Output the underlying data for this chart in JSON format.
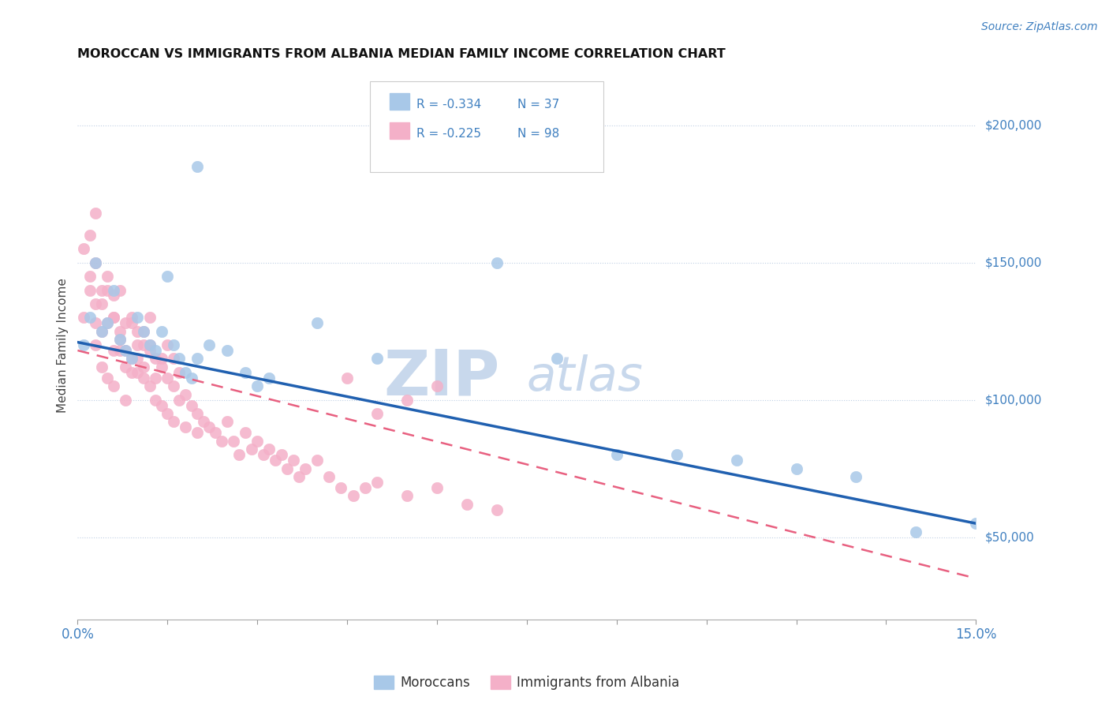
{
  "title": "MOROCCAN VS IMMIGRANTS FROM ALBANIA MEDIAN FAMILY INCOME CORRELATION CHART",
  "source": "Source: ZipAtlas.com",
  "ylabel": "Median Family Income",
  "xlim": [
    0.0,
    0.15
  ],
  "ylim": [
    20000,
    220000
  ],
  "yticks": [
    50000,
    100000,
    150000,
    200000
  ],
  "ytick_labels": [
    "$50,000",
    "$100,000",
    "$150,000",
    "$200,000"
  ],
  "xticks": [
    0.0,
    0.015,
    0.03,
    0.045,
    0.06,
    0.075,
    0.09,
    0.105,
    0.12,
    0.135,
    0.15
  ],
  "xlabels_show": [
    "0.0%",
    "",
    "",
    "",
    "",
    "",
    "",
    "",
    "",
    "",
    "15.0%"
  ],
  "blue_color": "#a8c8e8",
  "pink_color": "#f4b0c8",
  "blue_line_color": "#2060b0",
  "pink_line_color": "#e86080",
  "text_color": "#4080c0",
  "legend_R_blue": "R = -0.334",
  "legend_N_blue": "N = 37",
  "legend_R_pink": "R = -0.225",
  "legend_N_pink": "N = 98",
  "legend_label_blue": "Moroccans",
  "legend_label_pink": "Immigrants from Albania",
  "watermark_zip": "ZIP",
  "watermark_atlas": "atlas",
  "watermark_color": "#c8d8ec",
  "blue_trend_x0": 0.0,
  "blue_trend_y0": 121000,
  "blue_trend_x1": 0.15,
  "blue_trend_y1": 55000,
  "pink_trend_x0": 0.0,
  "pink_trend_y0": 118000,
  "pink_trend_x1": 0.15,
  "pink_trend_y1": 35000,
  "blue_x": [
    0.001,
    0.002,
    0.003,
    0.004,
    0.005,
    0.006,
    0.007,
    0.008,
    0.009,
    0.01,
    0.011,
    0.012,
    0.013,
    0.014,
    0.015,
    0.016,
    0.017,
    0.018,
    0.019,
    0.02,
    0.022,
    0.025,
    0.028,
    0.03,
    0.032,
    0.04,
    0.05,
    0.07,
    0.08,
    0.09,
    0.1,
    0.11,
    0.12,
    0.13,
    0.14,
    0.15,
    0.02
  ],
  "blue_y": [
    120000,
    130000,
    150000,
    125000,
    128000,
    140000,
    122000,
    118000,
    115000,
    130000,
    125000,
    120000,
    118000,
    125000,
    145000,
    120000,
    115000,
    110000,
    108000,
    115000,
    120000,
    118000,
    110000,
    105000,
    108000,
    128000,
    115000,
    150000,
    115000,
    80000,
    80000,
    78000,
    75000,
    72000,
    52000,
    55000,
    185000
  ],
  "pink_x": [
    0.001,
    0.001,
    0.002,
    0.002,
    0.003,
    0.003,
    0.003,
    0.004,
    0.004,
    0.005,
    0.005,
    0.006,
    0.006,
    0.006,
    0.007,
    0.007,
    0.008,
    0.008,
    0.009,
    0.009,
    0.01,
    0.01,
    0.011,
    0.011,
    0.012,
    0.012,
    0.013,
    0.013,
    0.014,
    0.014,
    0.015,
    0.015,
    0.016,
    0.016,
    0.017,
    0.018,
    0.018,
    0.019,
    0.02,
    0.02,
    0.021,
    0.022,
    0.023,
    0.024,
    0.025,
    0.026,
    0.027,
    0.028,
    0.029,
    0.03,
    0.031,
    0.032,
    0.033,
    0.034,
    0.035,
    0.036,
    0.037,
    0.038,
    0.04,
    0.042,
    0.044,
    0.046,
    0.048,
    0.05,
    0.055,
    0.06,
    0.065,
    0.07,
    0.003,
    0.004,
    0.005,
    0.006,
    0.007,
    0.008,
    0.009,
    0.01,
    0.011,
    0.012,
    0.013,
    0.014,
    0.015,
    0.016,
    0.017,
    0.002,
    0.003,
    0.004,
    0.005,
    0.006,
    0.007,
    0.008,
    0.009,
    0.01,
    0.011,
    0.012,
    0.045,
    0.05,
    0.055,
    0.06
  ],
  "pink_y": [
    130000,
    155000,
    140000,
    160000,
    150000,
    135000,
    168000,
    140000,
    125000,
    145000,
    128000,
    138000,
    118000,
    130000,
    140000,
    122000,
    128000,
    112000,
    130000,
    115000,
    125000,
    110000,
    120000,
    108000,
    118000,
    105000,
    115000,
    100000,
    112000,
    98000,
    108000,
    95000,
    105000,
    92000,
    100000,
    102000,
    90000,
    98000,
    95000,
    88000,
    92000,
    90000,
    88000,
    85000,
    92000,
    85000,
    80000,
    88000,
    82000,
    85000,
    80000,
    82000,
    78000,
    80000,
    75000,
    78000,
    72000,
    75000,
    78000,
    72000,
    68000,
    65000,
    68000,
    70000,
    65000,
    68000,
    62000,
    60000,
    120000,
    112000,
    108000,
    105000,
    118000,
    100000,
    110000,
    115000,
    112000,
    120000,
    108000,
    115000,
    120000,
    115000,
    110000,
    145000,
    128000,
    135000,
    140000,
    130000,
    125000,
    118000,
    128000,
    120000,
    125000,
    130000,
    108000,
    95000,
    100000,
    105000
  ]
}
